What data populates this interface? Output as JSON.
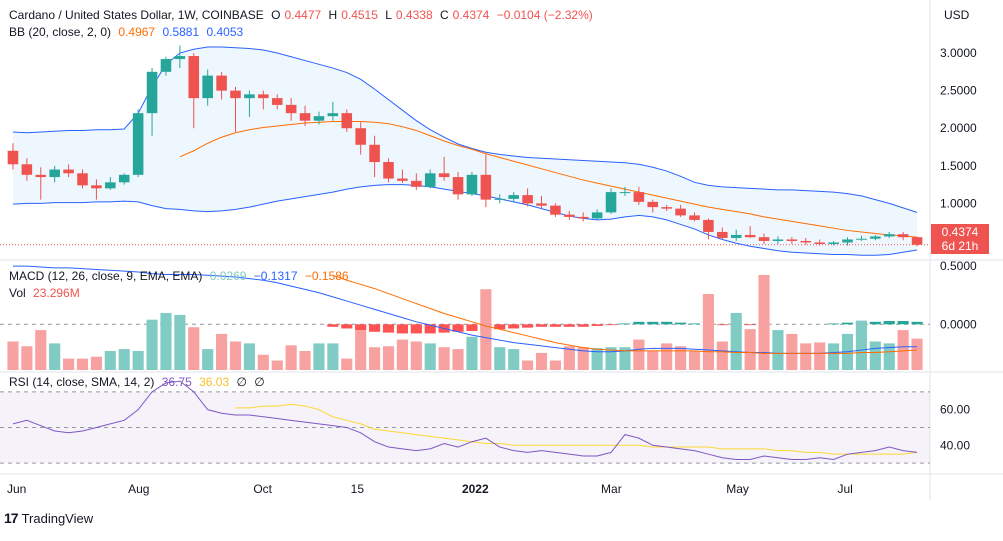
{
  "header": {
    "symbol": "Cardano / United States Dollar, 1W, COINBASE",
    "o_label": "O",
    "o_value": "0.4477",
    "h_label": "H",
    "h_value": "0.4515",
    "l_label": "L",
    "l_value": "0.4338",
    "c_label": "C",
    "c_value": "0.4374",
    "change": "−0.0104 (−2.32%)"
  },
  "bb_legend": {
    "label": "BB (20, close, 2, 0)",
    "basis": "0.4967",
    "upper": "0.5881",
    "lower": "0.4053"
  },
  "macd_legend": {
    "label": "MACD (12, 26, close, 9, EMA, EMA)",
    "hist": "0.0269",
    "macd": "−0.1317",
    "signal": "−0.1586"
  },
  "vol_legend": {
    "label": "Vol",
    "value": "23.296M"
  },
  "rsi_legend": {
    "label": "RSI (14, close, SMA, 14, 2)",
    "rsi": "36.75",
    "ma": "36.03",
    "extra1": "∅",
    "extra2": "∅"
  },
  "currency": "USD",
  "price_badge": {
    "price": "0.4374",
    "countdown": "6d 21h"
  },
  "price_axis": [
    "3.0000",
    "2.5000",
    "2.0000",
    "1.5000",
    "1.0000",
    "0.5000",
    "0.5000"
  ],
  "macd_axis": [
    "0.0000"
  ],
  "rsi_axis": [
    "60.00",
    "40.00"
  ],
  "time_axis": [
    "Jun",
    "Aug",
    "Oct",
    "15",
    "2022",
    "Mar",
    "May",
    "Jul"
  ],
  "logo_text": "TradingView",
  "colors": {
    "up": "#26a69a",
    "down": "#ef5350",
    "bb_band": "#2962ff",
    "bb_basis": "#ff6d00",
    "bb_fill": "#e3f2fd",
    "macd_line": "#2962ff",
    "signal_line": "#ff6d00",
    "vol_up": "#80cbc4",
    "vol_down": "#f7a1a1",
    "rsi_line": "#7e57c2",
    "rsi_ma": "#fdd835",
    "rsi_fill": "#7e57c2"
  },
  "chart_data": {
    "type": "candlestick",
    "symbol": "ADA/USD",
    "interval": "1W",
    "ylim": [
      0.3,
      3.2
    ],
    "candles": [
      {
        "o": 1.7,
        "h": 1.8,
        "l": 1.45,
        "c": 1.52
      },
      {
        "o": 1.52,
        "h": 1.6,
        "l": 1.3,
        "c": 1.38
      },
      {
        "o": 1.38,
        "h": 1.48,
        "l": 1.05,
        "c": 1.35
      },
      {
        "o": 1.35,
        "h": 1.5,
        "l": 1.28,
        "c": 1.45
      },
      {
        "o": 1.45,
        "h": 1.52,
        "l": 1.35,
        "c": 1.4
      },
      {
        "o": 1.4,
        "h": 1.45,
        "l": 1.2,
        "c": 1.24
      },
      {
        "o": 1.24,
        "h": 1.32,
        "l": 1.05,
        "c": 1.2
      },
      {
        "o": 1.2,
        "h": 1.35,
        "l": 1.18,
        "c": 1.28
      },
      {
        "o": 1.28,
        "h": 1.4,
        "l": 1.25,
        "c": 1.38
      },
      {
        "o": 1.38,
        "h": 2.25,
        "l": 1.35,
        "c": 2.2
      },
      {
        "o": 2.2,
        "h": 2.8,
        "l": 1.9,
        "c": 2.75
      },
      {
        "o": 2.75,
        "h": 2.95,
        "l": 2.7,
        "c": 2.92
      },
      {
        "o": 2.92,
        "h": 3.1,
        "l": 2.8,
        "c": 2.96
      },
      {
        "o": 2.96,
        "h": 3.0,
        "l": 2.0,
        "c": 2.4
      },
      {
        "o": 2.4,
        "h": 2.78,
        "l": 2.3,
        "c": 2.7
      },
      {
        "o": 2.7,
        "h": 2.75,
        "l": 2.38,
        "c": 2.5
      },
      {
        "o": 2.5,
        "h": 2.55,
        "l": 1.95,
        "c": 2.4
      },
      {
        "o": 2.4,
        "h": 2.5,
        "l": 2.15,
        "c": 2.45
      },
      {
        "o": 2.45,
        "h": 2.5,
        "l": 2.25,
        "c": 2.4
      },
      {
        "o": 2.4,
        "h": 2.45,
        "l": 2.25,
        "c": 2.31
      },
      {
        "o": 2.31,
        "h": 2.4,
        "l": 2.1,
        "c": 2.2
      },
      {
        "o": 2.2,
        "h": 2.3,
        "l": 2.03,
        "c": 2.1
      },
      {
        "o": 2.1,
        "h": 2.22,
        "l": 2.05,
        "c": 2.16
      },
      {
        "o": 2.16,
        "h": 2.35,
        "l": 2.1,
        "c": 2.2
      },
      {
        "o": 2.2,
        "h": 2.25,
        "l": 1.95,
        "c": 2.0
      },
      {
        "o": 2.0,
        "h": 2.08,
        "l": 1.65,
        "c": 1.78
      },
      {
        "o": 1.78,
        "h": 1.9,
        "l": 1.35,
        "c": 1.55
      },
      {
        "o": 1.55,
        "h": 1.6,
        "l": 1.28,
        "c": 1.33
      },
      {
        "o": 1.33,
        "h": 1.45,
        "l": 1.27,
        "c": 1.3
      },
      {
        "o": 1.3,
        "h": 1.4,
        "l": 1.18,
        "c": 1.22
      },
      {
        "o": 1.22,
        "h": 1.45,
        "l": 1.2,
        "c": 1.4
      },
      {
        "o": 1.4,
        "h": 1.62,
        "l": 1.3,
        "c": 1.35
      },
      {
        "o": 1.35,
        "h": 1.42,
        "l": 1.05,
        "c": 1.12
      },
      {
        "o": 1.12,
        "h": 1.42,
        "l": 1.1,
        "c": 1.38
      },
      {
        "o": 1.38,
        "h": 1.65,
        "l": 0.95,
        "c": 1.05
      },
      {
        "o": 1.05,
        "h": 1.12,
        "l": 1.0,
        "c": 1.06
      },
      {
        "o": 1.06,
        "h": 1.15,
        "l": 1.02,
        "c": 1.11
      },
      {
        "o": 1.11,
        "h": 1.2,
        "l": 0.96,
        "c": 1.0
      },
      {
        "o": 1.0,
        "h": 1.1,
        "l": 0.93,
        "c": 0.97
      },
      {
        "o": 0.97,
        "h": 1.0,
        "l": 0.82,
        "c": 0.85
      },
      {
        "o": 0.85,
        "h": 0.9,
        "l": 0.78,
        "c": 0.82
      },
      {
        "o": 0.82,
        "h": 0.88,
        "l": 0.76,
        "c": 0.8
      },
      {
        "o": 0.8,
        "h": 0.92,
        "l": 0.78,
        "c": 0.88
      },
      {
        "o": 0.88,
        "h": 1.2,
        "l": 0.86,
        "c": 1.15
      },
      {
        "o": 1.15,
        "h": 1.22,
        "l": 1.1,
        "c": 1.15
      },
      {
        "o": 1.15,
        "h": 1.22,
        "l": 0.98,
        "c": 1.02
      },
      {
        "o": 1.02,
        "h": 1.05,
        "l": 0.88,
        "c": 0.95
      },
      {
        "o": 0.95,
        "h": 0.98,
        "l": 0.9,
        "c": 0.93
      },
      {
        "o": 0.93,
        "h": 0.98,
        "l": 0.82,
        "c": 0.84
      },
      {
        "o": 0.84,
        "h": 0.88,
        "l": 0.76,
        "c": 0.78
      },
      {
        "o": 0.78,
        "h": 0.8,
        "l": 0.52,
        "c": 0.62
      },
      {
        "o": 0.62,
        "h": 0.68,
        "l": 0.52,
        "c": 0.54
      },
      {
        "o": 0.54,
        "h": 0.65,
        "l": 0.5,
        "c": 0.58
      },
      {
        "o": 0.58,
        "h": 0.7,
        "l": 0.54,
        "c": 0.55
      },
      {
        "o": 0.55,
        "h": 0.6,
        "l": 0.46,
        "c": 0.5
      },
      {
        "o": 0.5,
        "h": 0.56,
        "l": 0.46,
        "c": 0.52
      },
      {
        "o": 0.52,
        "h": 0.55,
        "l": 0.46,
        "c": 0.5
      },
      {
        "o": 0.5,
        "h": 0.54,
        "l": 0.45,
        "c": 0.48
      },
      {
        "o": 0.48,
        "h": 0.52,
        "l": 0.44,
        "c": 0.46
      },
      {
        "o": 0.46,
        "h": 0.5,
        "l": 0.44,
        "c": 0.48
      },
      {
        "o": 0.48,
        "h": 0.55,
        "l": 0.44,
        "c": 0.52
      },
      {
        "o": 0.52,
        "h": 0.57,
        "l": 0.5,
        "c": 0.53
      },
      {
        "o": 0.53,
        "h": 0.58,
        "l": 0.51,
        "c": 0.56
      },
      {
        "o": 0.56,
        "h": 0.62,
        "l": 0.54,
        "c": 0.59
      },
      {
        "o": 0.59,
        "h": 0.62,
        "l": 0.51,
        "c": 0.55
      },
      {
        "o": 0.55,
        "h": 0.56,
        "l": 0.43,
        "c": 0.45
      }
    ],
    "bb_upper": [
      1.95,
      1.94,
      1.95,
      1.96,
      1.97,
      1.97,
      1.98,
      1.98,
      1.99,
      2.2,
      2.55,
      2.85,
      3.0,
      3.05,
      3.08,
      3.08,
      3.07,
      3.06,
      3.04,
      3.0,
      2.95,
      2.9,
      2.85,
      2.8,
      2.74,
      2.65,
      2.52,
      2.38,
      2.24,
      2.1,
      1.98,
      1.88,
      1.79,
      1.73,
      1.68,
      1.65,
      1.63,
      1.61,
      1.6,
      1.59,
      1.58,
      1.57,
      1.56,
      1.55,
      1.54,
      1.52,
      1.48,
      1.43,
      1.36,
      1.28,
      1.24,
      1.22,
      1.21,
      1.2,
      1.19,
      1.18,
      1.18,
      1.17,
      1.16,
      1.15,
      1.13,
      1.1,
      1.05,
      1.0,
      0.94,
      0.88
    ],
    "bb_basis": [
      null,
      null,
      null,
      null,
      null,
      null,
      null,
      null,
      null,
      null,
      null,
      null,
      1.62,
      1.7,
      1.8,
      1.88,
      1.94,
      1.98,
      2.01,
      2.03,
      2.05,
      2.07,
      2.08,
      2.09,
      2.09,
      2.09,
      2.08,
      2.06,
      2.02,
      1.97,
      1.9,
      1.83,
      1.77,
      1.72,
      1.66,
      1.61,
      1.56,
      1.51,
      1.46,
      1.41,
      1.36,
      1.31,
      1.27,
      1.23,
      1.19,
      1.15,
      1.11,
      1.07,
      1.03,
      0.99,
      0.95,
      0.92,
      0.89,
      0.86,
      0.82,
      0.79,
      0.76,
      0.73,
      0.7,
      0.67,
      0.64,
      0.62,
      0.6,
      0.58,
      0.57,
      0.55
    ],
    "bb_lower": [
      0.99,
      1.0,
      1.0,
      1.01,
      1.01,
      1.01,
      1.02,
      1.02,
      1.03,
      1.02,
      0.97,
      0.93,
      0.92,
      0.9,
      0.89,
      0.9,
      0.92,
      0.95,
      0.99,
      1.03,
      1.06,
      1.09,
      1.12,
      1.15,
      1.19,
      1.22,
      1.24,
      1.25,
      1.25,
      1.24,
      1.22,
      1.19,
      1.16,
      1.13,
      1.1,
      1.06,
      1.02,
      0.98,
      0.93,
      0.88,
      0.83,
      0.8,
      0.78,
      0.79,
      0.82,
      0.84,
      0.82,
      0.78,
      0.72,
      0.66,
      0.58,
      0.52,
      0.47,
      0.43,
      0.4,
      0.37,
      0.35,
      0.34,
      0.33,
      0.32,
      0.32,
      0.31,
      0.31,
      0.32,
      0.35,
      0.38
    ],
    "macd_ylim": [
      -0.55,
      0.75
    ],
    "macd_line": [
      0.7,
      0.7,
      0.69,
      0.68,
      0.68,
      0.67,
      0.66,
      0.65,
      0.64,
      0.63,
      0.61,
      0.6,
      0.6,
      0.6,
      0.59,
      0.58,
      0.57,
      0.55,
      0.53,
      0.5,
      0.46,
      0.42,
      0.38,
      0.33,
      0.28,
      0.23,
      0.18,
      0.13,
      0.08,
      0.03,
      -0.01,
      -0.05,
      -0.09,
      -0.13,
      -0.16,
      -0.19,
      -0.22,
      -0.24,
      -0.26,
      -0.28,
      -0.3,
      -0.32,
      -0.33,
      -0.33,
      -0.32,
      -0.3,
      -0.29,
      -0.29,
      -0.29,
      -0.3,
      -0.31,
      -0.32,
      -0.33,
      -0.34,
      -0.34,
      -0.35,
      -0.35,
      -0.35,
      -0.35,
      -0.34,
      -0.33,
      -0.31,
      -0.29,
      -0.28,
      -0.27,
      -0.27
    ],
    "signal_line": [
      null,
      null,
      null,
      null,
      null,
      null,
      null,
      null,
      null,
      null,
      null,
      null,
      null,
      null,
      null,
      null,
      null,
      null,
      null,
      null,
      null,
      null,
      null,
      0.59,
      0.53,
      0.48,
      0.43,
      0.37,
      0.31,
      0.25,
      0.19,
      0.13,
      0.08,
      0.03,
      -0.02,
      -0.06,
      -0.1,
      -0.14,
      -0.18,
      -0.22,
      -0.25,
      -0.28,
      -0.3,
      -0.31,
      -0.32,
      -0.32,
      -0.32,
      -0.32,
      -0.32,
      -0.32,
      -0.33,
      -0.33,
      -0.34,
      -0.34,
      -0.35,
      -0.35,
      -0.35,
      -0.35,
      -0.35,
      -0.35,
      -0.35,
      -0.34,
      -0.34,
      -0.33,
      -0.32,
      -0.31
    ],
    "macd_hist": [
      0,
      0,
      0,
      0,
      0,
      0,
      0,
      0,
      0,
      0,
      0,
      0,
      0,
      0,
      0,
      0,
      0,
      0,
      0,
      0,
      0,
      0,
      0,
      -0.03,
      -0.05,
      -0.07,
      -0.09,
      -0.1,
      -0.11,
      -0.11,
      -0.11,
      -0.1,
      -0.09,
      -0.08,
      -0.07,
      -0.06,
      -0.05,
      -0.04,
      -0.03,
      -0.03,
      -0.03,
      -0.03,
      -0.02,
      -0.01,
      0.01,
      0.03,
      0.03,
      0.03,
      0.02,
      0.01,
      0.0,
      -0.01,
      -0.01,
      -0.01,
      -0.01,
      0.0,
      0.0,
      0.0,
      0.0,
      0.01,
      0.02,
      0.02,
      0.03,
      0.04,
      0.04,
      0.03
    ],
    "volume": [
      0.3,
      0.25,
      0.42,
      0.28,
      0.12,
      0.12,
      0.14,
      0.2,
      0.22,
      0.2,
      0.53,
      0.6,
      0.58,
      0.45,
      0.22,
      0.38,
      0.3,
      0.28,
      0.16,
      0.1,
      0.26,
      0.2,
      0.28,
      0.28,
      0.12,
      0.42,
      0.24,
      0.25,
      0.32,
      0.3,
      0.28,
      0.24,
      0.22,
      0.35,
      0.85,
      0.24,
      0.22,
      0.1,
      0.18,
      0.1,
      0.25,
      0.24,
      0.23,
      0.24,
      0.24,
      0.32,
      0.2,
      0.28,
      0.25,
      0.2,
      0.8,
      0.3,
      0.6,
      0.43,
      1.0,
      0.42,
      0.38,
      0.28,
      0.29,
      0.28,
      0.38,
      0.52,
      0.3,
      0.28,
      0.42,
      0.33
    ],
    "rsi_ylim": [
      25,
      80
    ],
    "rsi": [
      52,
      54,
      51,
      48,
      47,
      48,
      50,
      52,
      54,
      60,
      70,
      75,
      76,
      70,
      60,
      58,
      57,
      57,
      56,
      55,
      54,
      53,
      52,
      51,
      50,
      47,
      42,
      39,
      38,
      37,
      38,
      41,
      39,
      42,
      44,
      39,
      37,
      36,
      37,
      36,
      35,
      34,
      34,
      36,
      46,
      44,
      40,
      39,
      38,
      37,
      35,
      33,
      32,
      32,
      34,
      33,
      32,
      32,
      33,
      32,
      35,
      36,
      37,
      39,
      37,
      36
    ],
    "rsi_ma": [
      null,
      null,
      null,
      null,
      null,
      null,
      null,
      null,
      null,
      null,
      null,
      null,
      null,
      null,
      null,
      null,
      61,
      61,
      62,
      62,
      63,
      62,
      60,
      56,
      54,
      52,
      49,
      48,
      47,
      46,
      45,
      44,
      43,
      42,
      41,
      41,
      40,
      40,
      40,
      40,
      40,
      40,
      40,
      40,
      40,
      40,
      39,
      39,
      39,
      39,
      39,
      38,
      38,
      38,
      38,
      37,
      37,
      36,
      36,
      35,
      35,
      35,
      35,
      35,
      35,
      36
    ]
  }
}
